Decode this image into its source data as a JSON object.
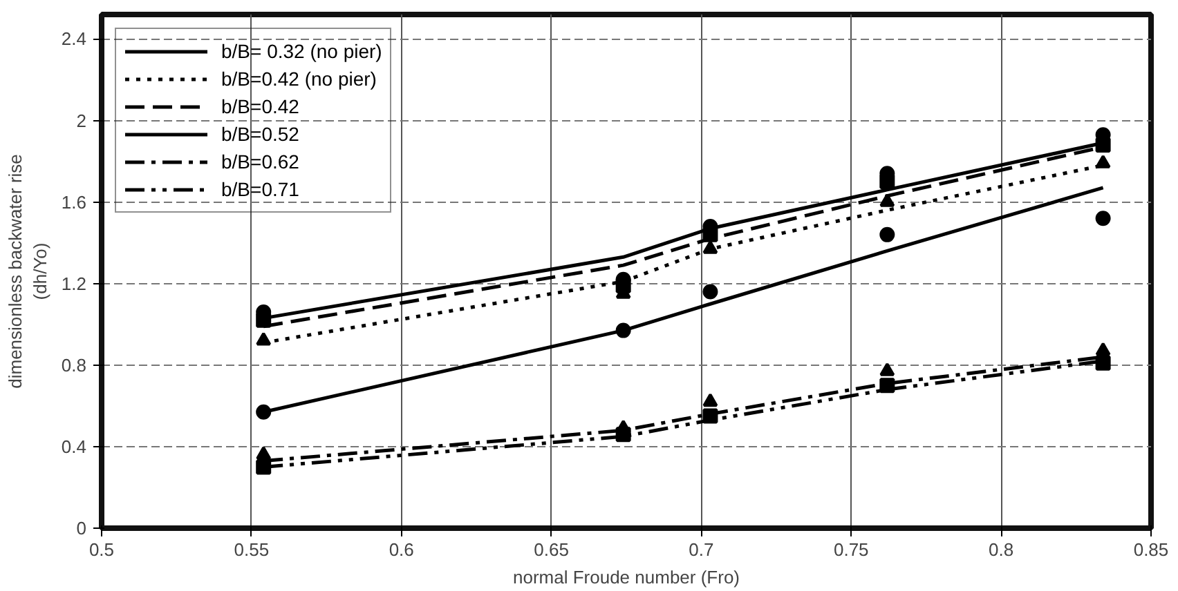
{
  "chart_data": {
    "type": "line",
    "xlabel": "normal Froude number (Fro)",
    "ylabel": "dimensionless backwater rise\n(dh/Yo)",
    "x": [
      0.554,
      0.674,
      0.703,
      0.762,
      0.834
    ],
    "xlim": [
      0.5,
      0.85
    ],
    "xticks": [
      0.5,
      0.55,
      0.6,
      0.65,
      0.7,
      0.75,
      0.8,
      0.85
    ],
    "ylim": [
      0,
      2.52
    ],
    "yticks": [
      0,
      0.4,
      0.8,
      1.2,
      1.6,
      2,
      2.4
    ],
    "grid": true,
    "legend": "top left",
    "series": [
      {
        "name": "b/B= 0.32 (no pier)",
        "color": "#000000",
        "line_style": "solid",
        "values": [
          1.03,
          1.33,
          1.47,
          1.66,
          1.89
        ]
      },
      {
        "name": "b/B=0.42 (no pier)",
        "color": "#000000",
        "line_style": "dotted",
        "values": [
          0.91,
          1.21,
          1.37,
          1.56,
          1.78
        ]
      },
      {
        "name": "b/B=0.42",
        "color": "#000000",
        "line_style": "dashed",
        "values": [
          0.99,
          1.29,
          1.42,
          1.63,
          1.87
        ]
      },
      {
        "name": "b/B=0.52",
        "color": "#000000",
        "line_style": "solid",
        "values": [
          0.57,
          0.97,
          1.1,
          1.36,
          1.67
        ]
      },
      {
        "name": "b/B=0.62",
        "color": "#000000",
        "line_style": "dashdot",
        "values": [
          0.33,
          0.48,
          0.56,
          0.71,
          0.84
        ]
      },
      {
        "name": "b/B=0.71",
        "color": "#000000",
        "line_style": "dashdotdot",
        "values": [
          0.3,
          0.45,
          0.53,
          0.68,
          0.82
        ]
      },
      {
        "type": "scatter",
        "marker": "circle",
        "color": "#000000",
        "values": [
          1.06,
          1.22,
          1.48,
          1.74,
          1.93
        ]
      },
      {
        "type": "scatter",
        "marker": "square",
        "color": "#000000",
        "values": [
          1.02,
          1.19,
          1.44,
          1.7,
          1.88
        ]
      },
      {
        "type": "scatter",
        "marker": "triangle",
        "color": "#000000",
        "values": [
          0.92,
          1.15,
          1.37,
          1.6,
          1.79
        ]
      },
      {
        "type": "scatter",
        "marker": "circle",
        "color": "#000000",
        "values": [
          0.57,
          0.97,
          1.16,
          1.44,
          1.52
        ]
      },
      {
        "type": "scatter",
        "marker": "triangle",
        "color": "#000000",
        "values": [
          0.36,
          0.49,
          0.62,
          0.77,
          0.87
        ]
      },
      {
        "type": "scatter",
        "marker": "square",
        "color": "#000000",
        "values": [
          0.3,
          0.46,
          0.55,
          0.7,
          0.81
        ]
      }
    ]
  }
}
